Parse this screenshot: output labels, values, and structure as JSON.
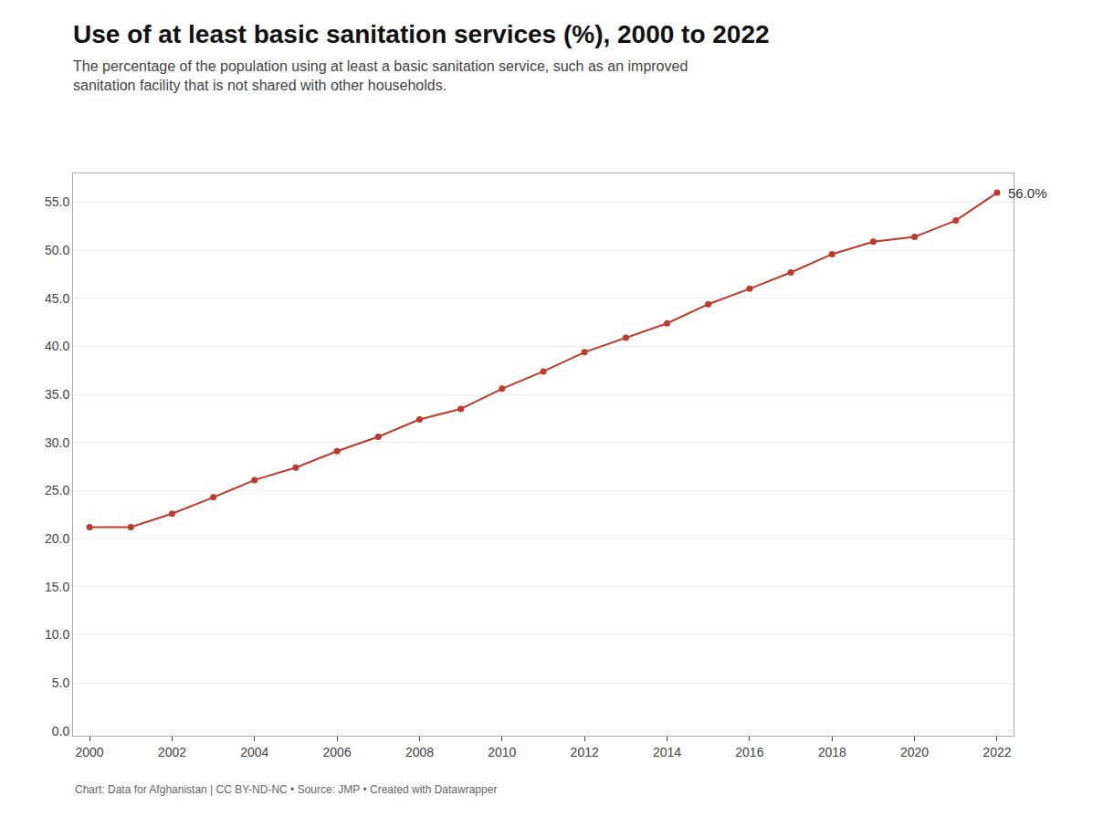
{
  "chart_data": {
    "type": "line",
    "title": "Use of at least basic sanitation services (%), 2000 to 2022",
    "subtitle": "The percentage of the population using at least a basic sanitation service, such as an improved\nsanitation facility that is not shared with other households.",
    "footer": "Chart: Data for Afghanistan | CC BY-ND-NC • Source: JMP • Created with Datawrapper",
    "x": [
      2000,
      2001,
      2002,
      2003,
      2004,
      2005,
      2006,
      2007,
      2008,
      2009,
      2010,
      2011,
      2012,
      2013,
      2014,
      2015,
      2016,
      2017,
      2018,
      2019,
      2020,
      2021,
      2022
    ],
    "values": [
      21.2,
      21.2,
      22.6,
      24.3,
      26.1,
      27.4,
      29.1,
      30.6,
      32.4,
      33.5,
      35.6,
      37.4,
      39.4,
      40.9,
      42.4,
      44.4,
      46.0,
      47.7,
      49.6,
      50.9,
      51.4,
      53.1,
      56.0
    ],
    "color": "#c0392b",
    "marker": "circle",
    "annotation": "56.0%",
    "xlim": [
      1999.6,
      2022.4
    ],
    "xticks": [
      2000,
      2002,
      2004,
      2006,
      2008,
      2010,
      2012,
      2014,
      2016,
      2018,
      2020,
      2022
    ],
    "ylim": [
      -0.5,
      58
    ],
    "yticks": [
      {
        "value": 0.0,
        "label": "0.0"
      },
      {
        "value": 5.0,
        "label": "5.0"
      },
      {
        "value": 10.0,
        "label": "10.0"
      },
      {
        "value": 15.0,
        "label": "15.0"
      },
      {
        "value": 20.0,
        "label": "20.0"
      },
      {
        "value": 25.0,
        "label": "25.0"
      },
      {
        "value": 30.0,
        "label": "30.0"
      },
      {
        "value": 35.0,
        "label": "35.0"
      },
      {
        "value": 40.0,
        "label": "40.0"
      },
      {
        "value": 45.0,
        "label": "45.0"
      },
      {
        "value": 50.0,
        "label": "50.0"
      },
      {
        "value": 55.0,
        "label": "55.0"
      }
    ],
    "grid": "y"
  }
}
